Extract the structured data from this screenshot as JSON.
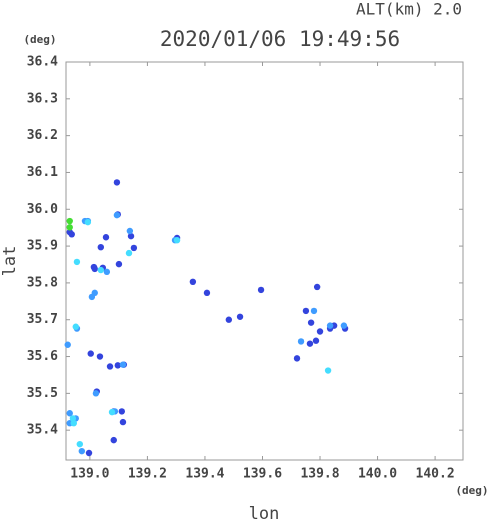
{
  "chart_data": {
    "type": "scatter",
    "title": "2020/01/06 19:49:56",
    "annotation": "ALT(km)  2.0",
    "y_unit": "(deg)",
    "x_unit": "(deg)",
    "x_label": "lon",
    "y_label": "lat",
    "xlim": [
      138.917,
      140.297
    ],
    "ylim": [
      35.319,
      36.4
    ],
    "xticks": [
      {
        "value": 139,
        "label": "139.0"
      },
      139.2,
      139.4,
      139.6,
      139.8,
      {
        "value": 140,
        "label": "140.0"
      },
      140.2
    ],
    "yticks": [
      35.4,
      35.5,
      35.6,
      35.7,
      35.8,
      35.9,
      {
        "value": 36,
        "label": "36.0"
      },
      36.1,
      36.2,
      36.3,
      36.4
    ],
    "grid": false,
    "series": [
      {
        "color": "#3344dd",
        "x": [
          138.93,
          138.937,
          139.014,
          139.017,
          139.038,
          139.056,
          139.097,
          139.094,
          139.143,
          139.153,
          139.003,
          139.035,
          139.07,
          139.097,
          139.118,
          139.024,
          139.083,
          139.083,
          139.111,
          139.115,
          138.997,
          139.303,
          139.358,
          139.407,
          139.483,
          139.595,
          139.522,
          139.751,
          139.79,
          139.765,
          139.786,
          139.8,
          139.769,
          139.849,
          139.887,
          139.835,
          139.72,
          139.101,
          139.045
        ],
        "y": [
          35.938,
          35.932,
          35.843,
          35.838,
          35.897,
          35.924,
          35.986,
          36.073,
          35.927,
          35.895,
          35.608,
          35.6,
          35.573,
          35.576,
          35.578,
          35.505,
          35.373,
          35.451,
          35.451,
          35.422,
          35.338,
          35.922,
          35.803,
          35.773,
          35.7,
          35.781,
          35.708,
          35.724,
          35.789,
          35.635,
          35.643,
          35.668,
          35.692,
          35.684,
          35.676,
          35.676,
          35.595,
          35.851,
          35.841
        ]
      },
      {
        "color": "#3f9cff",
        "x": [
          139.017,
          139.007,
          138.923,
          138.955,
          138.93,
          138.951,
          138.93,
          139.021,
          139.139,
          139.059,
          138.983,
          138.993,
          139.094,
          139.115,
          138.972,
          139.779,
          139.835,
          139.883,
          139.087,
          139.296,
          139.734
        ],
        "y": [
          35.773,
          35.762,
          35.632,
          35.676,
          35.446,
          35.432,
          35.419,
          35.5,
          35.941,
          35.83,
          35.968,
          35.968,
          35.984,
          35.578,
          35.343,
          35.724,
          35.684,
          35.684,
          35.451,
          35.916,
          35.641
        ]
      },
      {
        "color": "#44ddff",
        "x": [
          138.941,
          138.944,
          138.965,
          138.955,
          139.038,
          139.303,
          139.136,
          139.077,
          139.828,
          138.951,
          138.993
        ],
        "y": [
          35.432,
          35.419,
          35.362,
          35.857,
          35.835,
          35.916,
          35.881,
          35.449,
          35.562,
          35.681,
          35.965
        ]
      },
      {
        "color": "#44dd33",
        "x": [
          138.93,
          138.93
        ],
        "y": [
          35.968,
          35.951
        ]
      }
    ]
  }
}
